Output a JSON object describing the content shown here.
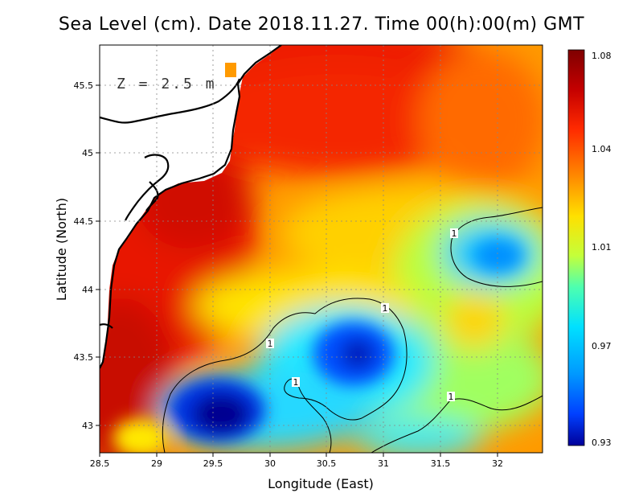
{
  "title": "Sea Level (cm). Date 2018.11.27. Time 00(h):00(m) GMT",
  "depth_label": "Z = 2.5 m",
  "xlabel": "Longitude (East)",
  "ylabel": "Latitude (North)",
  "lon_ticks": [
    "28.5",
    "29",
    "29.5",
    "30",
    "30.5",
    "31",
    "31.5",
    "32"
  ],
  "lat_ticks": [
    "43",
    "43.5",
    "44",
    "44.5",
    "45",
    "45.5"
  ],
  "colorbar": {
    "ticks": [
      "1.08",
      "1.04",
      "1.01",
      "0.97",
      "0.93"
    ],
    "colors": [
      "#7f0000",
      "#c40000",
      "#ff2a00",
      "#ff8a00",
      "#ffe000",
      "#c4ff3a",
      "#4dffb0",
      "#00e0ff",
      "#0098ff",
      "#0040ff",
      "#00009a"
    ]
  },
  "contour_labels": [
    "1",
    "1",
    "1",
    "1",
    "1"
  ],
  "map_data": {
    "lon_range": [
      28.5,
      32.4
    ],
    "lat_range": [
      42.8,
      45.8
    ],
    "variable": "sea level",
    "min": 0.93,
    "max": 1.08
  }
}
